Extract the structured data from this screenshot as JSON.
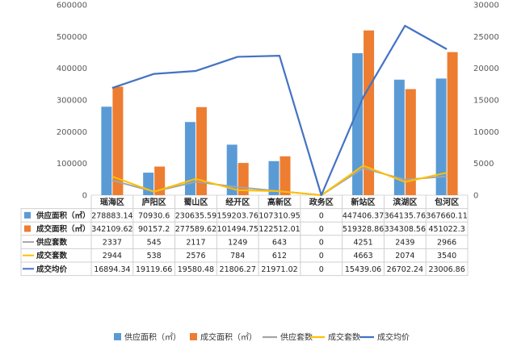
{
  "chart_data": {
    "type": "bar",
    "categories": [
      "瑶海区",
      "庐阳区",
      "蜀山区",
      "经开区",
      "高新区",
      "政务区",
      "新站区",
      "滨湖区",
      "包河区"
    ],
    "series": [
      {
        "name": "供应面积（㎡）",
        "kind": "bar",
        "axis": "left",
        "color": "#5b9bd5",
        "values": [
          278883.14,
          70930.6,
          230635.59,
          159203.76,
          107310.95,
          0,
          447406.37,
          364135.76,
          367660.11
        ],
        "labels": [
          "278883.14",
          "70930.6",
          "230635.59",
          "159203.76",
          "107310.95",
          "0",
          "447406.37",
          "364135.76",
          "367660.11"
        ]
      },
      {
        "name": "成交面积（㎡）",
        "kind": "bar",
        "axis": "left",
        "color": "#ed7d31",
        "values": [
          342109.62,
          90157.2,
          277589.62,
          101494.75,
          122512.01,
          0,
          519328.86,
          334308.56,
          451022.3
        ],
        "labels": [
          "342109.62",
          "90157.2",
          "277589.62",
          "101494.75",
          "122512.01",
          "0",
          "519328.86",
          "334308.56",
          "451022.3"
        ]
      },
      {
        "name": "供应套数",
        "kind": "line",
        "axis": "right",
        "color": "#a5a5a5",
        "values": [
          2337,
          545,
          2117,
          1249,
          643,
          0,
          4251,
          2439,
          2966
        ],
        "labels": [
          "2337",
          "545",
          "2117",
          "1249",
          "643",
          "0",
          "4251",
          "2439",
          "2966"
        ]
      },
      {
        "name": "成交套数",
        "kind": "line",
        "axis": "right",
        "color": "#ffc000",
        "values": [
          2944,
          538,
          2576,
          784,
          612,
          0,
          4663,
          2074,
          3540
        ],
        "labels": [
          "2944",
          "538",
          "2576",
          "784",
          "612",
          "0",
          "4663",
          "2074",
          "3540"
        ]
      },
      {
        "name": "成交均价",
        "kind": "line",
        "axis": "right",
        "color": "#4472c4",
        "values": [
          16894.34,
          19119.66,
          19580.48,
          21806.27,
          21971.02,
          0,
          15439.06,
          26702.24,
          23006.86
        ],
        "labels": [
          "16894.34",
          "19119.66",
          "19580.48",
          "21806.27",
          "21971.02",
          "0",
          "15439.06",
          "26702.24",
          "23006.86"
        ]
      }
    ],
    "y_left": {
      "min": 0,
      "max": 600000,
      "ticks": [
        "0",
        "100000",
        "200000",
        "300000",
        "400000",
        "500000",
        "600000"
      ]
    },
    "y_right": {
      "min": 0,
      "max": 30000,
      "ticks": [
        "0",
        "5000",
        "10000",
        "15000",
        "20000",
        "25000",
        "30000"
      ]
    },
    "grid": false,
    "legend": "bottom",
    "data_table": true
  }
}
